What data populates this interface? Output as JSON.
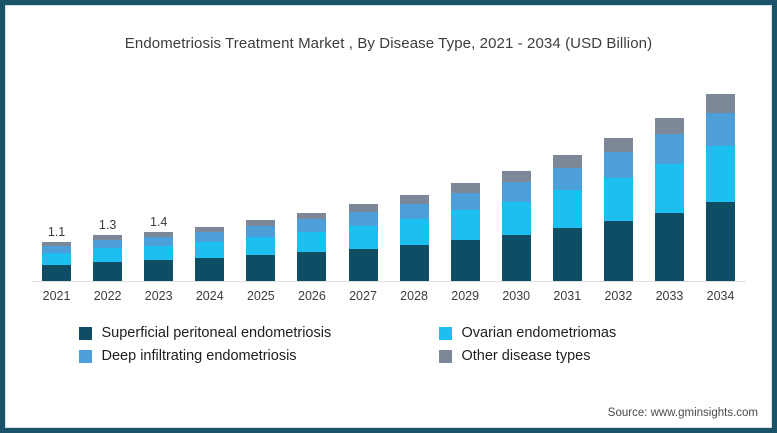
{
  "window": {
    "background": "#ffffff",
    "frame_border_color": "#1a5269"
  },
  "title": "Endometriosis Treatment Market , By Disease Type, 2021 - 2034 (USD Billion)",
  "source": "Source: www.gminsights.com",
  "chart_data": {
    "type": "bar",
    "stacked": true,
    "title": "Endometriosis Treatment Market , By Disease Type, 2021 - 2034 (USD Billion)",
    "unit": "USD Billion",
    "categories": [
      "2021",
      "2022",
      "2023",
      "2024",
      "2025",
      "2026",
      "2027",
      "2028",
      "2029",
      "2030",
      "2031",
      "2032",
      "2033",
      "2034"
    ],
    "series": [
      {
        "name": "Superficial peritoneal endometriosis",
        "color": "#0f4d64",
        "values": [
          0.46,
          0.55,
          0.59,
          0.65,
          0.74,
          0.82,
          0.92,
          1.03,
          1.18,
          1.32,
          1.51,
          1.72,
          1.95,
          2.25
        ]
      },
      {
        "name": "Ovarian endometriomas",
        "color": "#1cc0f0",
        "values": [
          0.33,
          0.39,
          0.42,
          0.47,
          0.52,
          0.59,
          0.66,
          0.74,
          0.84,
          0.95,
          1.08,
          1.23,
          1.4,
          1.6
        ]
      },
      {
        "name": "Deep infiltrating endometriosis",
        "color": "#4d9fd9",
        "values": [
          0.2,
          0.23,
          0.25,
          0.28,
          0.31,
          0.35,
          0.4,
          0.44,
          0.5,
          0.57,
          0.65,
          0.74,
          0.84,
          0.96
        ]
      },
      {
        "name": "Other disease types",
        "color": "#7c8797",
        "values": [
          0.11,
          0.13,
          0.14,
          0.15,
          0.18,
          0.19,
          0.22,
          0.24,
          0.28,
          0.31,
          0.36,
          0.41,
          0.46,
          0.54
        ]
      }
    ],
    "totals": [
      1.1,
      1.3,
      1.4,
      1.55,
      1.75,
      1.95,
      2.2,
      2.45,
      2.8,
      3.15,
      3.6,
      4.1,
      4.65,
      5.35
    ],
    "total_labels": [
      "1.1",
      "1.3",
      "1.4",
      "",
      "",
      "",
      "",
      "",
      "",
      "",
      "",
      "",
      "",
      ""
    ],
    "ylim": [
      0,
      5.5
    ],
    "grid": false,
    "y_axis_shown": false,
    "legend_position": "bottom"
  },
  "legend": {
    "items": [
      {
        "label": "Superficial peritoneal endometriosis",
        "color": "#0f4d64"
      },
      {
        "label": "Ovarian endometriomas",
        "color": "#1cc0f0"
      },
      {
        "label": "Deep infiltrating endometriosis",
        "color": "#4d9fd9"
      },
      {
        "label": "Other disease types",
        "color": "#7c8797"
      }
    ]
  }
}
